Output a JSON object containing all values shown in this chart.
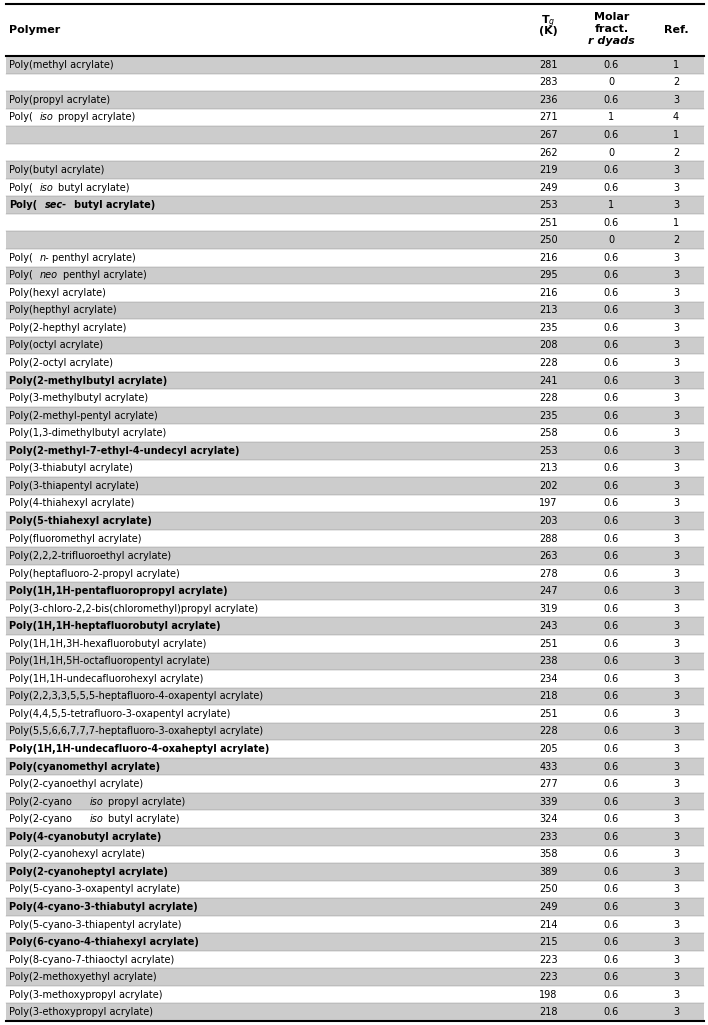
{
  "rows": [
    {
      "polymer": "Poly(methyl acrylate)",
      "tg": "281",
      "mf": "0.6",
      "ref": "1",
      "bold": false,
      "italic_parts": [],
      "shade": true
    },
    {
      "polymer": "",
      "tg": "283",
      "mf": "0",
      "ref": "2",
      "bold": false,
      "italic_parts": [],
      "shade": false
    },
    {
      "polymer": "Poly(propyl acrylate)",
      "tg": "236",
      "mf": "0.6",
      "ref": "3",
      "bold": false,
      "italic_parts": [],
      "shade": true
    },
    {
      "polymer": "Poly(isopropyl acrylate)",
      "tg": "271",
      "mf": "1",
      "ref": "4",
      "bold": false,
      "italic_parts": [
        "iso"
      ],
      "shade": false
    },
    {
      "polymer": "",
      "tg": "267",
      "mf": "0.6",
      "ref": "1",
      "bold": false,
      "italic_parts": [],
      "shade": true
    },
    {
      "polymer": "",
      "tg": "262",
      "mf": "0",
      "ref": "2",
      "bold": false,
      "italic_parts": [],
      "shade": false
    },
    {
      "polymer": "Poly(butyl acrylate)",
      "tg": "219",
      "mf": "0.6",
      "ref": "3",
      "bold": false,
      "italic_parts": [],
      "shade": true
    },
    {
      "polymer": "Poly(isobutyl acrylate)",
      "tg": "249",
      "mf": "0.6",
      "ref": "3",
      "bold": false,
      "italic_parts": [
        "iso"
      ],
      "shade": false
    },
    {
      "polymer": "Poly(sec-butyl acrylate)",
      "tg": "253",
      "mf": "1",
      "ref": "3",
      "bold": true,
      "italic_parts": [
        "sec-"
      ],
      "shade": true
    },
    {
      "polymer": "",
      "tg": "251",
      "mf": "0.6",
      "ref": "1",
      "bold": false,
      "italic_parts": [],
      "shade": false
    },
    {
      "polymer": "",
      "tg": "250",
      "mf": "0",
      "ref": "2",
      "bold": false,
      "italic_parts": [],
      "shade": true
    },
    {
      "polymer": "Poly(n-penthyl acrylate)",
      "tg": "216",
      "mf": "0.6",
      "ref": "3",
      "bold": false,
      "italic_parts": [
        "n-"
      ],
      "shade": false
    },
    {
      "polymer": "Poly(neopenthyl acrylate)",
      "tg": "295",
      "mf": "0.6",
      "ref": "3",
      "bold": false,
      "italic_parts": [
        "neo"
      ],
      "shade": true
    },
    {
      "polymer": "Poly(hexyl acrylate)",
      "tg": "216",
      "mf": "0.6",
      "ref": "3",
      "bold": false,
      "italic_parts": [],
      "shade": false
    },
    {
      "polymer": "Poly(hepthyl acrylate)",
      "tg": "213",
      "mf": "0.6",
      "ref": "3",
      "bold": false,
      "italic_parts": [],
      "shade": true
    },
    {
      "polymer": "Poly(2-hepthyl acrylate)",
      "tg": "235",
      "mf": "0.6",
      "ref": "3",
      "bold": false,
      "italic_parts": [],
      "shade": false
    },
    {
      "polymer": "Poly(octyl acrylate)",
      "tg": "208",
      "mf": "0.6",
      "ref": "3",
      "bold": false,
      "italic_parts": [],
      "shade": true
    },
    {
      "polymer": "Poly(2-octyl acrylate)",
      "tg": "228",
      "mf": "0.6",
      "ref": "3",
      "bold": false,
      "italic_parts": [],
      "shade": false
    },
    {
      "polymer": "Poly(2-methylbutyl acrylate)",
      "tg": "241",
      "mf": "0.6",
      "ref": "3",
      "bold": true,
      "italic_parts": [],
      "shade": true
    },
    {
      "polymer": "Poly(3-methylbutyl acrylate)",
      "tg": "228",
      "mf": "0.6",
      "ref": "3",
      "bold": false,
      "italic_parts": [],
      "shade": false
    },
    {
      "polymer": "Poly(2-methyl-pentyl acrylate)",
      "tg": "235",
      "mf": "0.6",
      "ref": "3",
      "bold": false,
      "italic_parts": [],
      "shade": true
    },
    {
      "polymer": "Poly(1,3-dimethylbutyl acrylate)",
      "tg": "258",
      "mf": "0.6",
      "ref": "3",
      "bold": false,
      "italic_parts": [],
      "shade": false
    },
    {
      "polymer": "Poly(2-methyl-7-ethyl-4-undecyl acrylate)",
      "tg": "253",
      "mf": "0.6",
      "ref": "3",
      "bold": true,
      "italic_parts": [],
      "shade": true
    },
    {
      "polymer": "Poly(3-thiabutyl acrylate)",
      "tg": "213",
      "mf": "0.6",
      "ref": "3",
      "bold": false,
      "italic_parts": [],
      "shade": false
    },
    {
      "polymer": "Poly(3-thiapentyl acrylate)",
      "tg": "202",
      "mf": "0.6",
      "ref": "3",
      "bold": false,
      "italic_parts": [],
      "shade": true
    },
    {
      "polymer": "Poly(4-thiahexyl acrylate)",
      "tg": "197",
      "mf": "0.6",
      "ref": "3",
      "bold": false,
      "italic_parts": [],
      "shade": false
    },
    {
      "polymer": "Poly(5-thiahexyl acrylate)",
      "tg": "203",
      "mf": "0.6",
      "ref": "3",
      "bold": true,
      "italic_parts": [],
      "shade": true
    },
    {
      "polymer": "Poly(fluoromethyl acrylate)",
      "tg": "288",
      "mf": "0.6",
      "ref": "3",
      "bold": false,
      "italic_parts": [],
      "shade": false
    },
    {
      "polymer": "Poly(2,2,2-trifluoroethyl acrylate)",
      "tg": "263",
      "mf": "0.6",
      "ref": "3",
      "bold": false,
      "italic_parts": [],
      "shade": true
    },
    {
      "polymer": "Poly(heptafluoro-2-propyl acrylate)",
      "tg": "278",
      "mf": "0.6",
      "ref": "3",
      "bold": false,
      "italic_parts": [],
      "shade": false
    },
    {
      "polymer": "Poly(1H,1H-pentafluoropropyl acrylate)",
      "tg": "247",
      "mf": "0.6",
      "ref": "3",
      "bold": true,
      "italic_parts": [],
      "shade": true
    },
    {
      "polymer": "Poly(3-chloro-2,2-bis(chloromethyl)propyl acrylate)",
      "tg": "319",
      "mf": "0.6",
      "ref": "3",
      "bold": false,
      "italic_parts": [],
      "shade": false
    },
    {
      "polymer": "Poly(1H,1H-heptafluorobutyl acrylate)",
      "tg": "243",
      "mf": "0.6",
      "ref": "3",
      "bold": true,
      "italic_parts": [],
      "shade": true
    },
    {
      "polymer": "Poly(1H,1H,3H-hexafluorobutyl acrylate)",
      "tg": "251",
      "mf": "0.6",
      "ref": "3",
      "bold": false,
      "italic_parts": [],
      "shade": false
    },
    {
      "polymer": "Poly(1H,1H,5H-octafluoropentyl acrylate)",
      "tg": "238",
      "mf": "0.6",
      "ref": "3",
      "bold": false,
      "italic_parts": [],
      "shade": true
    },
    {
      "polymer": "Poly(1H,1H-undecafluorohexyl acrylate)",
      "tg": "234",
      "mf": "0.6",
      "ref": "3",
      "bold": false,
      "italic_parts": [],
      "shade": false
    },
    {
      "polymer": "Poly(2,2,3,3,5,5,5-heptafluoro-4-oxapentyl acrylate)",
      "tg": "218",
      "mf": "0.6",
      "ref": "3",
      "bold": false,
      "italic_parts": [],
      "shade": true
    },
    {
      "polymer": "Poly(4,4,5,5-tetrafluoro-3-oxapentyl acrylate)",
      "tg": "251",
      "mf": "0.6",
      "ref": "3",
      "bold": false,
      "italic_parts": [],
      "shade": false
    },
    {
      "polymer": "Poly(5,5,6,6,7,7,7-heptafluoro-3-oxaheptyl acrylate)",
      "tg": "228",
      "mf": "0.6",
      "ref": "3",
      "bold": false,
      "italic_parts": [],
      "shade": true
    },
    {
      "polymer": "Poly(1H,1H-undecafluoro-4-oxaheptyl acrylate)",
      "tg": "205",
      "mf": "0.6",
      "ref": "3",
      "bold": true,
      "italic_parts": [],
      "shade": false
    },
    {
      "polymer": "Poly(cyanomethyl acrylate)",
      "tg": "433",
      "mf": "0.6",
      "ref": "3",
      "bold": true,
      "italic_parts": [],
      "shade": true
    },
    {
      "polymer": "Poly(2-cyanoethyl acrylate)",
      "tg": "277",
      "mf": "0.6",
      "ref": "3",
      "bold": false,
      "italic_parts": [],
      "shade": false
    },
    {
      "polymer": "Poly(2-cyanoisopropyl acrylate)",
      "tg": "339",
      "mf": "0.6",
      "ref": "3",
      "bold": false,
      "italic_parts": [
        "iso"
      ],
      "shade": true
    },
    {
      "polymer": "Poly(2-cyanoisobutyl acrylate)",
      "tg": "324",
      "mf": "0.6",
      "ref": "3",
      "bold": false,
      "italic_parts": [
        "iso"
      ],
      "shade": false
    },
    {
      "polymer": "Poly(4-cyanobutyl acrylate)",
      "tg": "233",
      "mf": "0.6",
      "ref": "3",
      "bold": true,
      "italic_parts": [],
      "shade": true
    },
    {
      "polymer": "Poly(2-cyanohexyl acrylate)",
      "tg": "358",
      "mf": "0.6",
      "ref": "3",
      "bold": false,
      "italic_parts": [],
      "shade": false
    },
    {
      "polymer": "Poly(2-cyanoheptyl acrylate)",
      "tg": "389",
      "mf": "0.6",
      "ref": "3",
      "bold": true,
      "italic_parts": [],
      "shade": true
    },
    {
      "polymer": "Poly(5-cyano-3-oxapentyl acrylate)",
      "tg": "250",
      "mf": "0.6",
      "ref": "3",
      "bold": false,
      "italic_parts": [],
      "shade": false
    },
    {
      "polymer": "Poly(4-cyano-3-thiabutyl acrylate)",
      "tg": "249",
      "mf": "0.6",
      "ref": "3",
      "bold": true,
      "italic_parts": [],
      "shade": true
    },
    {
      "polymer": "Poly(5-cyano-3-thiapentyl acrylate)",
      "tg": "214",
      "mf": "0.6",
      "ref": "3",
      "bold": false,
      "italic_parts": [],
      "shade": false
    },
    {
      "polymer": "Poly(6-cyano-4-thiahexyl acrylate)",
      "tg": "215",
      "mf": "0.6",
      "ref": "3",
      "bold": true,
      "italic_parts": [],
      "shade": true
    },
    {
      "polymer": "Poly(8-cyano-7-thiaoctyl acrylate)",
      "tg": "223",
      "mf": "0.6",
      "ref": "3",
      "bold": false,
      "italic_parts": [],
      "shade": false
    },
    {
      "polymer": "Poly(2-methoxyethyl acrylate)",
      "tg": "223",
      "mf": "0.6",
      "ref": "3",
      "bold": false,
      "italic_parts": [],
      "shade": true
    },
    {
      "polymer": "Poly(3-methoxypropyl acrylate)",
      "tg": "198",
      "mf": "0.6",
      "ref": "3",
      "bold": false,
      "italic_parts": [],
      "shade": false
    },
    {
      "polymer": "Poly(3-ethoxypropyl acrylate)",
      "tg": "218",
      "mf": "0.6",
      "ref": "3",
      "bold": false,
      "italic_parts": [],
      "shade": true
    }
  ],
  "shade_color": "#cccccc",
  "bg_color": "#ffffff",
  "font_size": 7.0,
  "header_font_size": 8.0
}
